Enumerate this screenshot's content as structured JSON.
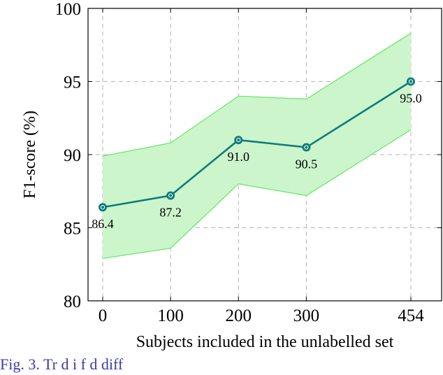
{
  "chart_data": {
    "type": "line",
    "xlabel": "Subjects included in the unlabelled set",
    "ylabel": "F1-score (%)",
    "categories": [
      "0",
      "100",
      "200",
      "300",
      "454"
    ],
    "x": [
      0,
      100,
      200,
      300,
      454
    ],
    "xlim": [
      0,
      454
    ],
    "ylim": [
      80,
      100
    ],
    "yticks": [
      80,
      85,
      90,
      95,
      100
    ],
    "grid": true,
    "series": [
      {
        "values": [
          86.4,
          87.2,
          91.0,
          90.5,
          95.0
        ],
        "labels": [
          "86.4",
          "87.2",
          "91.0",
          "90.5",
          "95.0"
        ],
        "band_upper": [
          89.9,
          90.8,
          94.0,
          93.8,
          98.3
        ],
        "band_lower": [
          82.9,
          83.6,
          88.0,
          87.2,
          91.7
        ]
      }
    ],
    "colors": {
      "line": "#0e7c7b",
      "band_fill": "#ccf5cc",
      "band_edge": "#6be86b",
      "grid": "#b3b3b3"
    }
  },
  "caption": "Fig. 3.  Tr      d       i         f                 d     diff"
}
